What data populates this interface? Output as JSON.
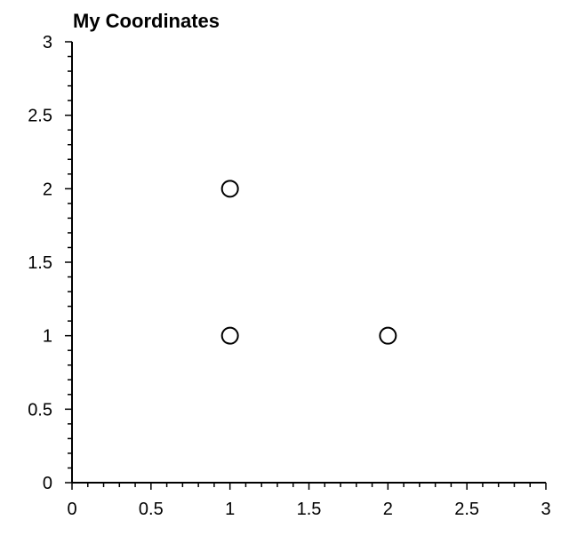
{
  "chart_data": {
    "type": "scatter",
    "title": "My Coordinates",
    "xlabel": "",
    "ylabel": "",
    "xlim": [
      0,
      3
    ],
    "ylim": [
      0,
      3
    ],
    "x_ticks": [
      "0",
      "0.5",
      "1",
      "1.5",
      "2",
      "2.5",
      "3"
    ],
    "y_ticks": [
      "0",
      "0.5",
      "1",
      "1.5",
      "2",
      "2.5",
      "3"
    ],
    "grid": false,
    "marker": "open-circle",
    "series": [
      {
        "points": [
          {
            "x": 1,
            "y": 2
          },
          {
            "x": 1,
            "y": 1
          },
          {
            "x": 2,
            "y": 1
          }
        ]
      }
    ]
  }
}
